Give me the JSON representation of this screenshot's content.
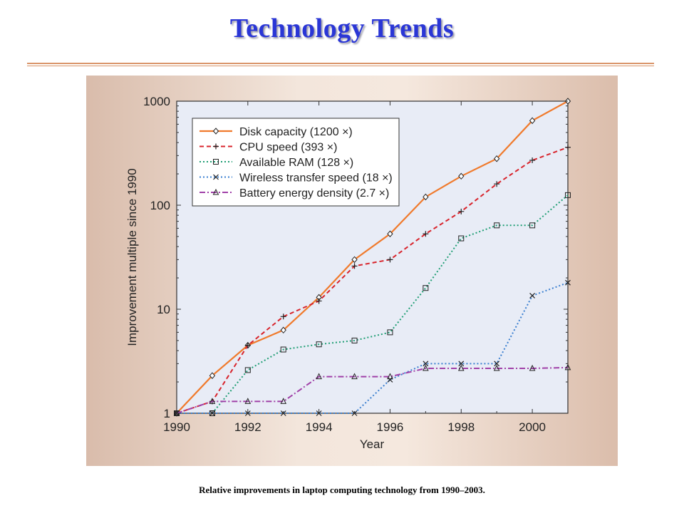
{
  "slide": {
    "title": "Technology Trends",
    "caption": "Relative improvements in laptop computing technology from 1990–2003."
  },
  "chart_data": {
    "type": "line",
    "title": "",
    "xlabel": "Year",
    "ylabel": "Improvement multiple since 1990",
    "xlim": [
      1990,
      2001
    ],
    "ylim": [
      1,
      1000
    ],
    "yscale": "log",
    "grid": false,
    "legend_position": "top-left",
    "plot_background": "#e8ecf6",
    "x_ticks": [
      "1990",
      "1992",
      "1994",
      "1996",
      "1998",
      "2000"
    ],
    "y_ticks": [
      "1",
      "10",
      "100",
      "1000"
    ],
    "x": [
      1990,
      1991,
      1992,
      1993,
      1994,
      1995,
      1996,
      1997,
      1998,
      1999,
      2000,
      2001
    ],
    "series": [
      {
        "name": "Disk capacity (1200 ×)",
        "color": "#f07a2c",
        "dash": "solid",
        "marker": "diamond",
        "values": [
          1,
          2.3,
          4.5,
          6.3,
          13,
          30,
          53,
          120,
          190,
          280,
          650,
          1000
        ]
      },
      {
        "name": "CPU speed (393 ×)",
        "color": "#d8242c",
        "dash": "dashed",
        "marker": "plus",
        "values": [
          1,
          1.3,
          4.5,
          8.5,
          12,
          26,
          30,
          53,
          87,
          160,
          270,
          360
        ]
      },
      {
        "name": "Available RAM (128 ×)",
        "color": "#1f9e74",
        "dash": "dotted",
        "marker": "square",
        "values": [
          1,
          1,
          2.6,
          4.1,
          4.6,
          5,
          6,
          16,
          48,
          64,
          64,
          125
        ]
      },
      {
        "name": "Wireless transfer speed (18 ×)",
        "color": "#3a7fd0",
        "dash": "dotted",
        "marker": "x",
        "values": [
          1,
          1,
          1,
          1,
          1,
          1,
          2.1,
          3,
          3,
          3,
          13.5,
          18
        ]
      },
      {
        "name": "Battery energy density (2.7 ×)",
        "color": "#a040a8",
        "dash": "dashdot",
        "marker": "triangle",
        "values": [
          1,
          1.3,
          1.3,
          1.3,
          2.25,
          2.25,
          2.25,
          2.7,
          2.7,
          2.7,
          2.7,
          2.75
        ]
      }
    ]
  }
}
